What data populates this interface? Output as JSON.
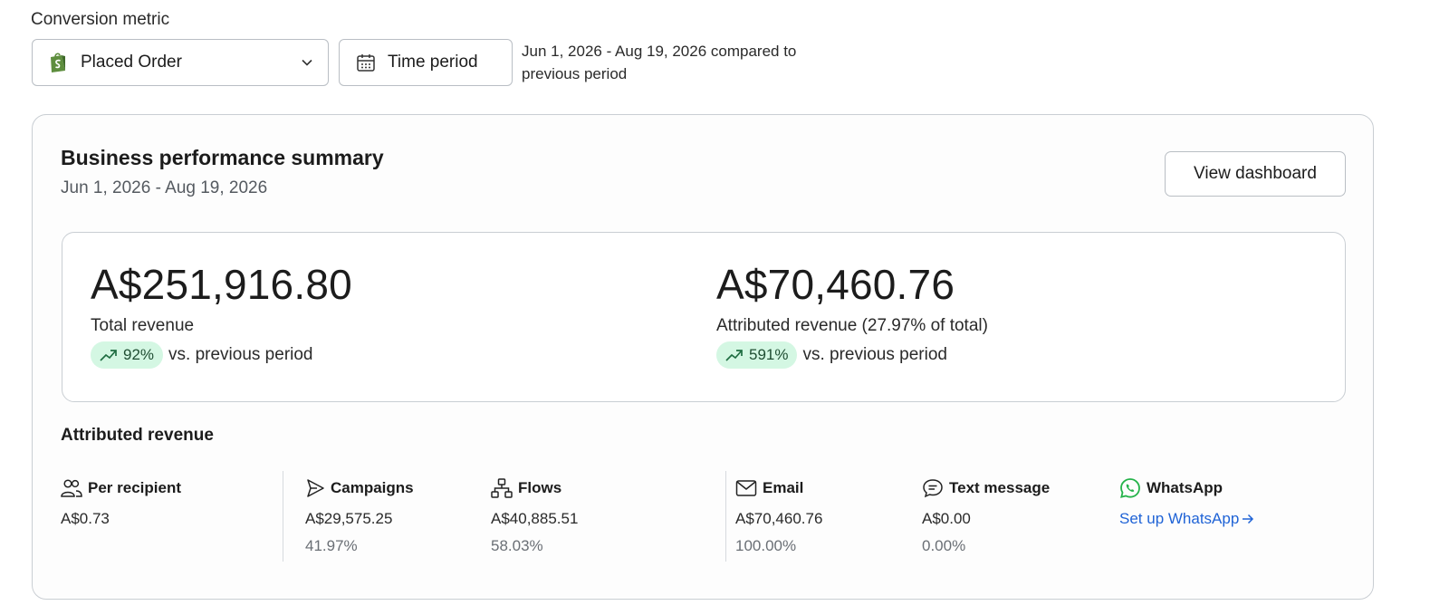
{
  "controls": {
    "metric_label": "Conversion metric",
    "metric_value": "Placed Order",
    "time_button": "Time period",
    "period_text": "Jun 1, 2026 - Aug 19, 2026 compared to previous period"
  },
  "summary": {
    "title": "Business performance summary",
    "date_range": "Jun 1, 2026 - Aug 19, 2026",
    "view_dashboard": "View dashboard",
    "total": {
      "value": "A$251,916.80",
      "label": "Total revenue",
      "change": "92%",
      "vs": "vs. previous period"
    },
    "attributed": {
      "value": "A$70,460.76",
      "label": "Attributed revenue (27.97% of total)",
      "change": "591%",
      "vs": "vs. previous period"
    }
  },
  "attributed_revenue": {
    "title": "Attributed revenue",
    "per_recipient": {
      "label": "Per recipient",
      "amount": "A$0.73"
    },
    "campaigns": {
      "label": "Campaigns",
      "amount": "A$29,575.25",
      "pct": "41.97%"
    },
    "flows": {
      "label": "Flows",
      "amount": "A$40,885.51",
      "pct": "58.03%"
    },
    "email": {
      "label": "Email",
      "amount": "A$70,460.76",
      "pct": "100.00%"
    },
    "text_message": {
      "label": "Text message",
      "amount": "A$0.00",
      "pct": "0.00%"
    },
    "whatsapp": {
      "label": "WhatsApp",
      "link": "Set up WhatsApp"
    }
  },
  "colors": {
    "accent_link": "#1f63d6",
    "positive_pill": "#d4f7e3",
    "shopify_green": "#5e8e3e",
    "whatsapp_green": "#25b34a"
  }
}
